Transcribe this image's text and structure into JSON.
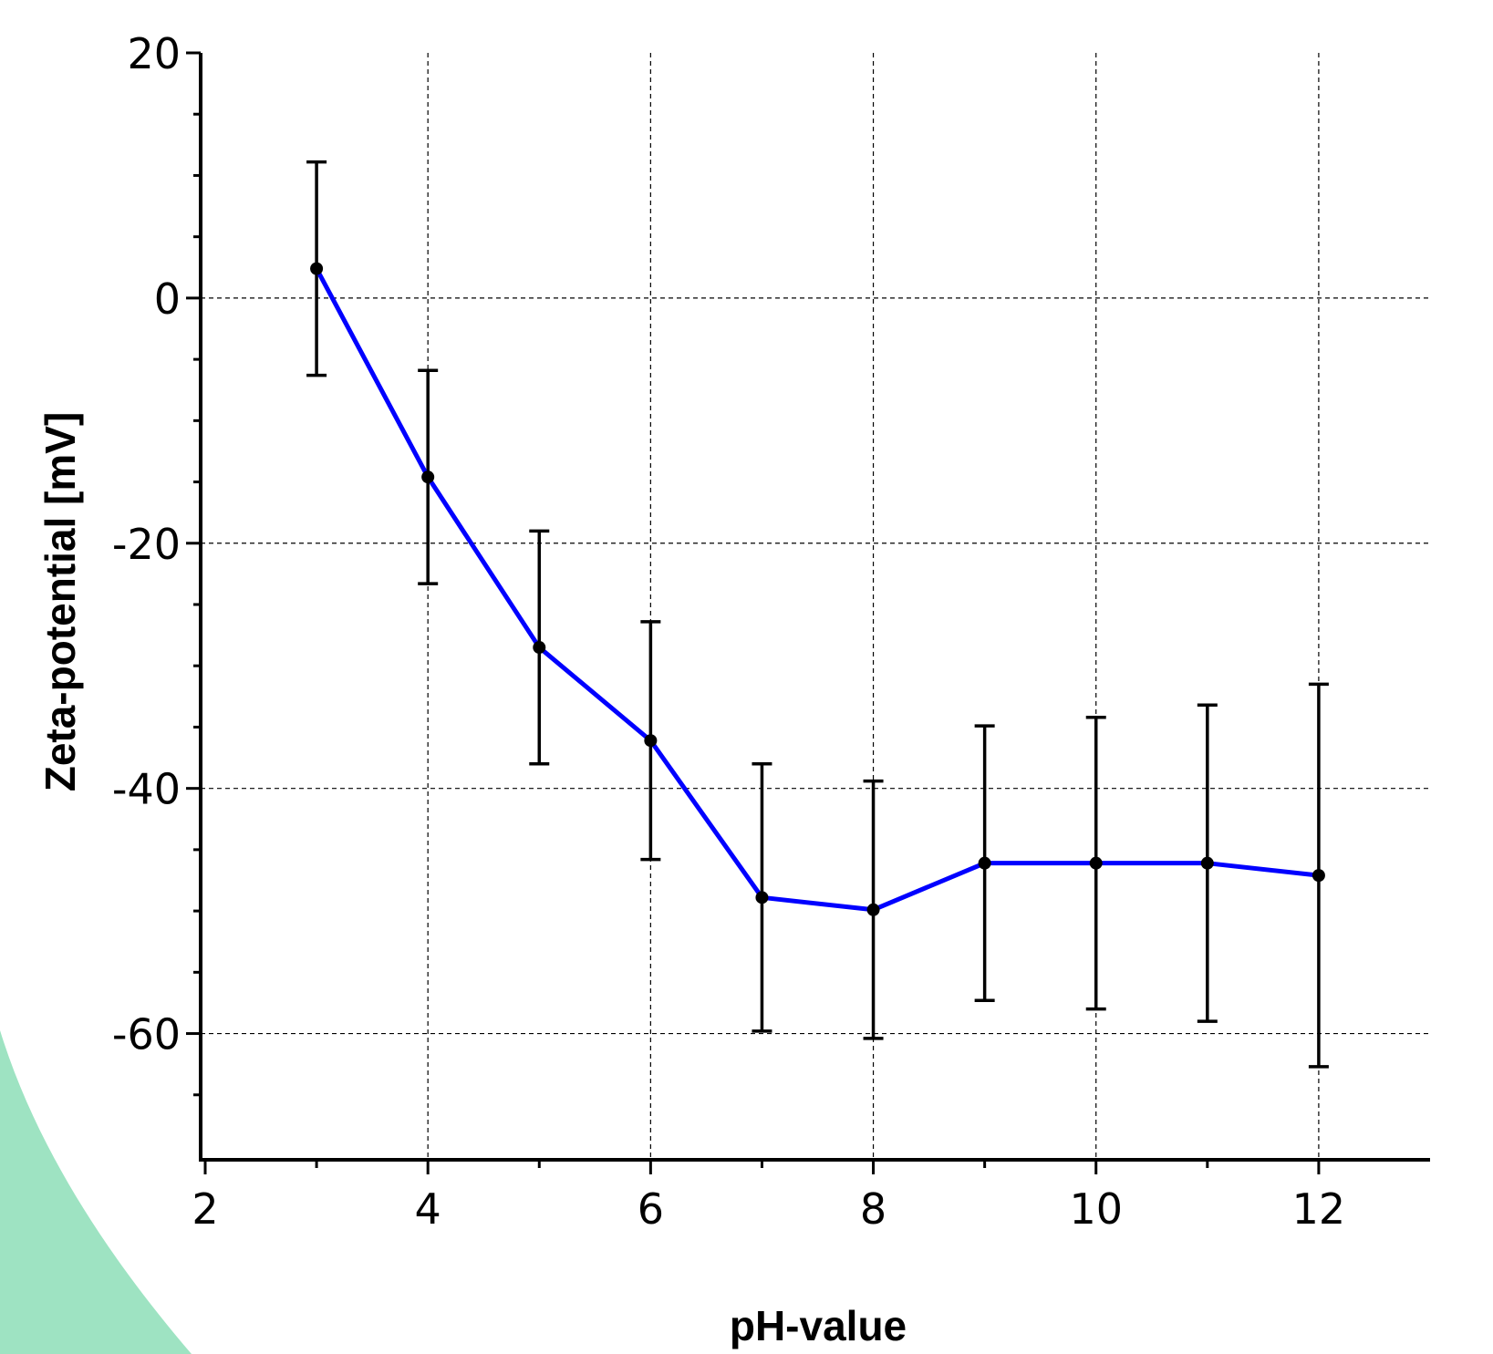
{
  "chart_data": {
    "type": "line",
    "x_label": "pH-value",
    "y_label": "Zeta-potential [mV]",
    "x": [
      3,
      4,
      5,
      6,
      7,
      8,
      9,
      10,
      11,
      12
    ],
    "values": [
      2.4,
      -14.6,
      -28.5,
      -36.1,
      -48.9,
      -49.9,
      -46.1,
      -46.1,
      -46.1,
      -47.1
    ],
    "errors": [
      8.7,
      8.7,
      9.5,
      9.7,
      10.9,
      10.5,
      11.2,
      11.9,
      12.9,
      15.6
    ],
    "color": "#0000ff",
    "marker_color": "#000000",
    "xlim": [
      2,
      13
    ],
    "xticks": [
      2,
      4,
      6,
      8,
      10,
      12
    ],
    "xticks_minor": [
      3,
      5,
      7,
      9,
      11
    ],
    "ylim": [
      -70,
      20
    ],
    "yticks": [
      -60,
      -40,
      -20,
      0,
      20
    ],
    "yticks_minor": [
      -65,
      -55,
      -50,
      -45,
      -35,
      -30,
      -25,
      -15,
      -10,
      -5,
      5,
      10,
      15
    ],
    "grid": true
  }
}
